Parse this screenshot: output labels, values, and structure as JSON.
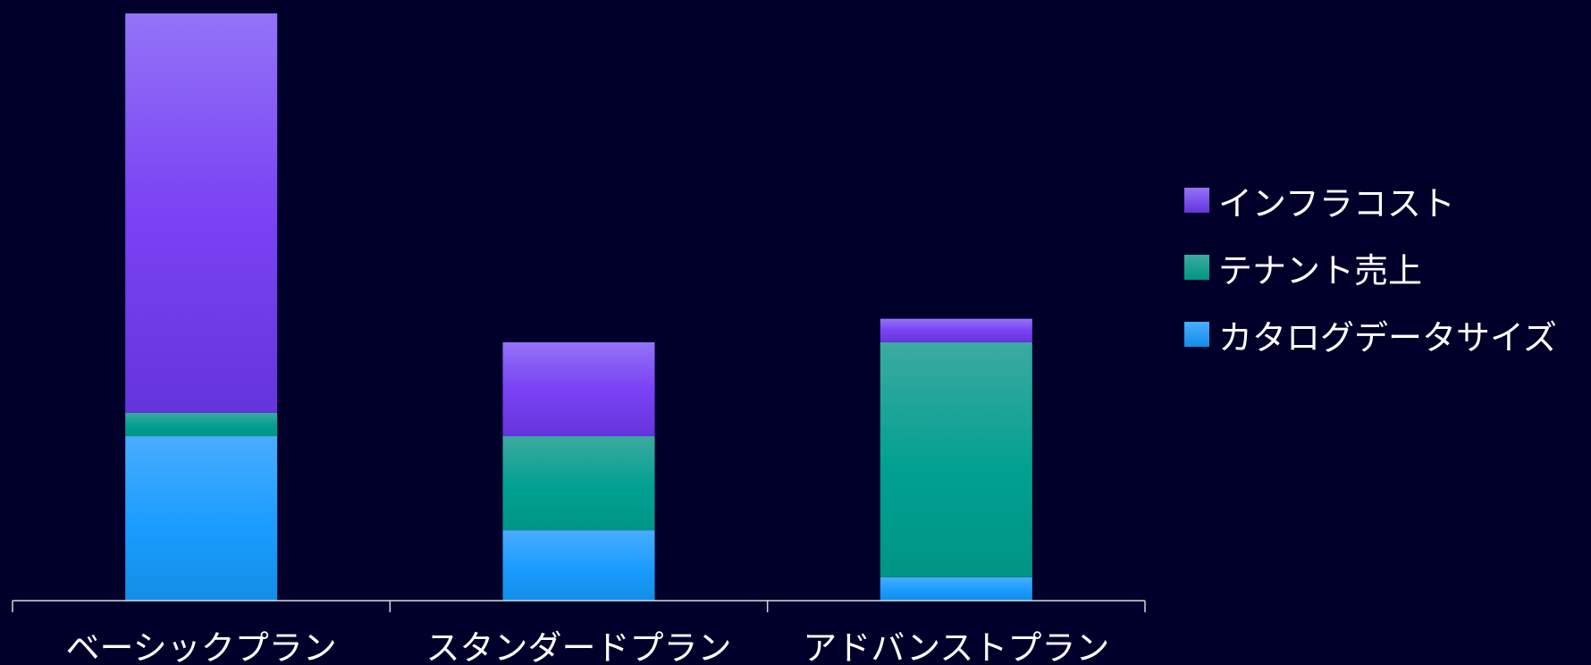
{
  "chart_data": {
    "type": "bar",
    "stacked": true,
    "categories": [
      "ベーシックプラン",
      "スタンダードプラン",
      "アドバンストプラン"
    ],
    "series": [
      {
        "name": "カタログデータサイズ",
        "values": [
          7,
          3,
          1
        ],
        "color": "#1a9cff"
      },
      {
        "name": "テナント売上",
        "values": [
          1,
          4,
          10
        ],
        "color": "#00a091"
      },
      {
        "name": "インフラコスト",
        "values": [
          17,
          4,
          1
        ],
        "color": "#7a42f4"
      }
    ],
    "ylim": [
      0,
      25
    ],
    "grid": false,
    "legend_position": "right"
  },
  "legend": {
    "items": [
      {
        "label": "インフラコスト",
        "color": "#7a42f4"
      },
      {
        "label": "テナント売上",
        "color": "#00a091"
      },
      {
        "label": "カタログデータサイズ",
        "color": "#1a9cff"
      }
    ]
  }
}
